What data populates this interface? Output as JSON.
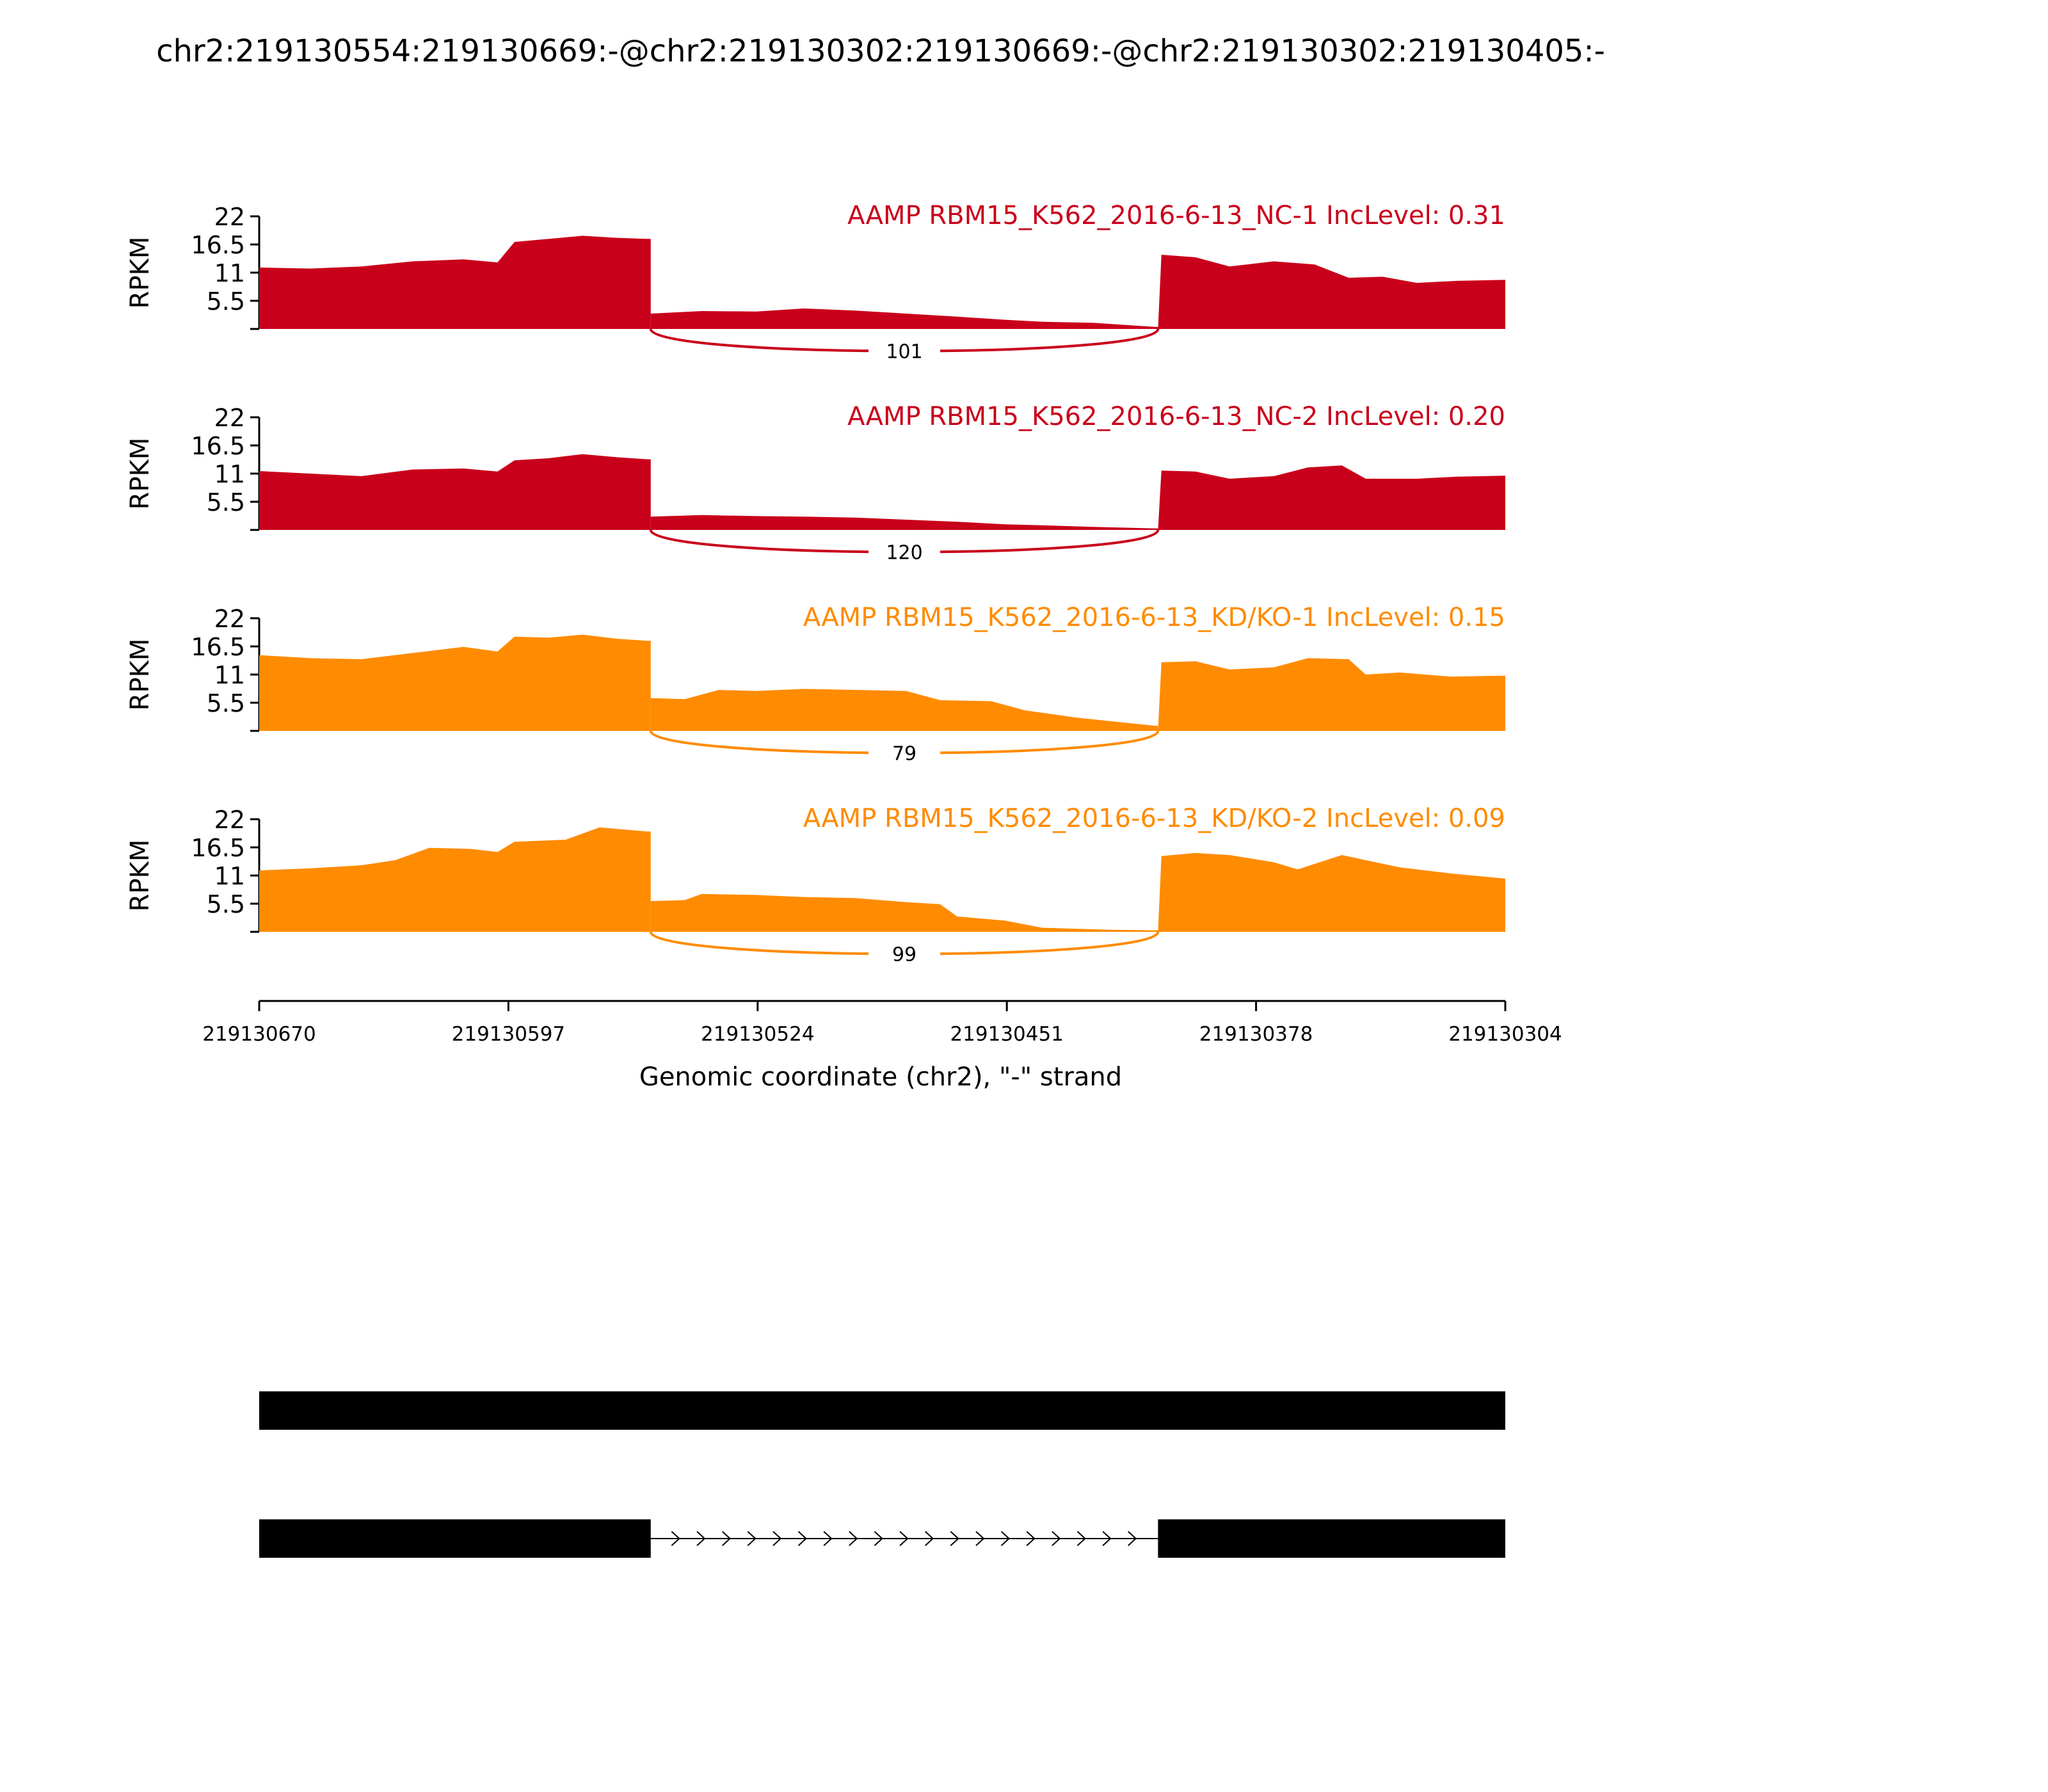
{
  "title": "chr2:219130554:219130669:-@chr2:219130302:219130669:-@chr2:219130302:219130405:-",
  "chart_data": {
    "type": "area",
    "title": "chr2:219130554:219130669:-@chr2:219130302:219130669:-@chr2:219130302:219130405:-",
    "xlabel": "Genomic coordinate (chr2), \"-\" strand",
    "ylabel": "RPKM",
    "ylim": [
      0,
      22
    ],
    "yticks": [
      "22",
      "16.5",
      "11",
      "5.5"
    ],
    "xlim": [
      219130670,
      219130304
    ],
    "xticks": [
      "219130670",
      "219130597",
      "219130524",
      "219130451",
      "219130378",
      "219130304"
    ],
    "exon1": [
      219130670,
      219130555
    ],
    "exon2": [
      219130555,
      219130406
    ],
    "exon3": [
      219130406,
      219130304
    ],
    "series": [
      {
        "name": "AAMP RBM15_K562_2016-6-13_NC-1 IncLevel: 0.31",
        "color": "#c9001b",
        "junction_count": "101",
        "exon1": [
          [
            219130670,
            12.0
          ],
          [
            219130655,
            11.8
          ],
          [
            219130640,
            12.2
          ],
          [
            219130625,
            13.2
          ],
          [
            219130610,
            13.6
          ],
          [
            219130600,
            13.0
          ],
          [
            219130595,
            17.0
          ],
          [
            219130585,
            17.6
          ],
          [
            219130575,
            18.2
          ],
          [
            219130565,
            17.8
          ],
          [
            219130556,
            17.6
          ]
        ],
        "exon2": [
          [
            219130555,
            3.0
          ],
          [
            219130540,
            3.5
          ],
          [
            219130524,
            3.4
          ],
          [
            219130510,
            4.0
          ],
          [
            219130495,
            3.6
          ],
          [
            219130480,
            3.0
          ],
          [
            219130465,
            2.4
          ],
          [
            219130451,
            1.8
          ],
          [
            219130440,
            1.4
          ],
          [
            219130425,
            1.2
          ],
          [
            219130407,
            0.4
          ]
        ],
        "exon3": [
          [
            219130405,
            14.5
          ],
          [
            219130395,
            14.0
          ],
          [
            219130385,
            12.2
          ],
          [
            219130372,
            13.2
          ],
          [
            219130360,
            12.6
          ],
          [
            219130350,
            10.0
          ],
          [
            219130340,
            10.2
          ],
          [
            219130330,
            9.0
          ],
          [
            219130318,
            9.4
          ],
          [
            219130304,
            9.6
          ]
        ]
      },
      {
        "name": "AAMP RBM15_K562_2016-6-13_NC-2 IncLevel: 0.20",
        "color": "#c9001b",
        "junction_count": "120",
        "exon1": [
          [
            219130670,
            11.5
          ],
          [
            219130655,
            11.0
          ],
          [
            219130640,
            10.5
          ],
          [
            219130625,
            11.8
          ],
          [
            219130610,
            12.0
          ],
          [
            219130600,
            11.4
          ],
          [
            219130595,
            13.6
          ],
          [
            219130585,
            14.0
          ],
          [
            219130575,
            14.8
          ],
          [
            219130565,
            14.2
          ],
          [
            219130556,
            13.8
          ]
        ],
        "exon2": [
          [
            219130555,
            2.6
          ],
          [
            219130540,
            2.9
          ],
          [
            219130524,
            2.7
          ],
          [
            219130510,
            2.6
          ],
          [
            219130495,
            2.4
          ],
          [
            219130480,
            2.0
          ],
          [
            219130465,
            1.6
          ],
          [
            219130451,
            1.1
          ],
          [
            219130440,
            0.9
          ],
          [
            219130425,
            0.6
          ],
          [
            219130407,
            0.3
          ]
        ],
        "exon3": [
          [
            219130405,
            11.6
          ],
          [
            219130395,
            11.4
          ],
          [
            219130385,
            10.0
          ],
          [
            219130372,
            10.5
          ],
          [
            219130362,
            12.2
          ],
          [
            219130352,
            12.6
          ],
          [
            219130345,
            10.0
          ],
          [
            219130330,
            10.0
          ],
          [
            219130318,
            10.4
          ],
          [
            219130304,
            10.6
          ]
        ]
      },
      {
        "name": "AAMP RBM15_K562_2016-6-13_KD/KO-1 IncLevel: 0.15",
        "color": "#ff8b00",
        "junction_count": "79",
        "exon1": [
          [
            219130670,
            14.8
          ],
          [
            219130655,
            14.2
          ],
          [
            219130640,
            14.0
          ],
          [
            219130625,
            15.2
          ],
          [
            219130610,
            16.4
          ],
          [
            219130600,
            15.5
          ],
          [
            219130595,
            18.4
          ],
          [
            219130585,
            18.2
          ],
          [
            219130575,
            18.8
          ],
          [
            219130565,
            18.0
          ],
          [
            219130556,
            17.6
          ]
        ],
        "exon2": [
          [
            219130555,
            6.4
          ],
          [
            219130545,
            6.2
          ],
          [
            219130535,
            8.0
          ],
          [
            219130524,
            7.8
          ],
          [
            219130510,
            8.2
          ],
          [
            219130495,
            8.0
          ],
          [
            219130480,
            7.8
          ],
          [
            219130470,
            6.0
          ],
          [
            219130455,
            5.8
          ],
          [
            219130445,
            4.0
          ],
          [
            219130430,
            2.6
          ],
          [
            219130407,
            1.0
          ]
        ],
        "exon3": [
          [
            219130405,
            13.4
          ],
          [
            219130395,
            13.6
          ],
          [
            219130385,
            12.0
          ],
          [
            219130372,
            12.4
          ],
          [
            219130362,
            14.2
          ],
          [
            219130350,
            14.0
          ],
          [
            219130345,
            11.0
          ],
          [
            219130335,
            11.4
          ],
          [
            219130320,
            10.6
          ],
          [
            219130304,
            10.8
          ]
        ]
      },
      {
        "name": "AAMP RBM15_K562_2016-6-13_KD/KO-2 IncLevel: 0.09",
        "color": "#ff8b00",
        "junction_count": "99",
        "exon1": [
          [
            219130670,
            12.0
          ],
          [
            219130655,
            12.4
          ],
          [
            219130640,
            13.0
          ],
          [
            219130630,
            14.0
          ],
          [
            219130620,
            16.4
          ],
          [
            219130608,
            16.2
          ],
          [
            219130600,
            15.6
          ],
          [
            219130595,
            17.6
          ],
          [
            219130580,
            18.0
          ],
          [
            219130570,
            20.4
          ],
          [
            219130556,
            19.6
          ]
        ],
        "exon2": [
          [
            219130555,
            6.0
          ],
          [
            219130545,
            6.2
          ],
          [
            219130540,
            7.4
          ],
          [
            219130524,
            7.2
          ],
          [
            219130510,
            6.8
          ],
          [
            219130495,
            6.6
          ],
          [
            219130480,
            5.8
          ],
          [
            219130470,
            5.4
          ],
          [
            219130465,
            3.0
          ],
          [
            219130451,
            2.2
          ],
          [
            219130440,
            0.8
          ],
          [
            219130420,
            0.4
          ],
          [
            219130407,
            0.3
          ]
        ],
        "exon3": [
          [
            219130405,
            14.8
          ],
          [
            219130395,
            15.4
          ],
          [
            219130385,
            15.0
          ],
          [
            219130372,
            13.6
          ],
          [
            219130365,
            12.2
          ],
          [
            219130352,
            15.0
          ],
          [
            219130345,
            14.0
          ],
          [
            219130335,
            12.6
          ],
          [
            219130320,
            11.4
          ],
          [
            219130304,
            10.4
          ]
        ]
      }
    ],
    "isoforms": [
      {
        "exons": [
          [
            219130670,
            219130304
          ]
        ]
      },
      {
        "exons": [
          [
            219130670,
            219130555
          ],
          [
            219130406,
            219130304
          ]
        ]
      }
    ]
  }
}
